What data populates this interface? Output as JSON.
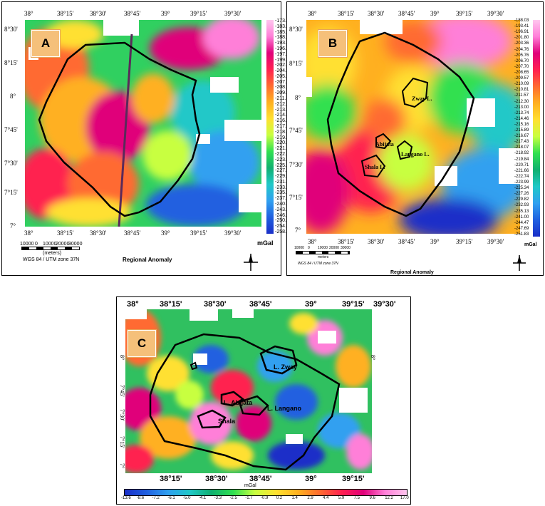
{
  "panels": {
    "a": {
      "label": "A",
      "x_ticks": [
        "38°",
        "38°15'",
        "38°30'",
        "38°45'",
        "39°",
        "39°15'",
        "39°30'"
      ],
      "y_ticks": [
        "8°30'",
        "8°15'",
        "8°",
        "7°45'",
        "7°30'",
        "7°15'",
        "7°"
      ],
      "colorbar": [
        "-173.97",
        "-183.70",
        "-185.90",
        "-188.65",
        "-193.19",
        "-196.53",
        "-197.75",
        "-199.53",
        "-202.06",
        "-204.18",
        "-205.67",
        "-207.06",
        "-208.47",
        "-209.95",
        "-211.31",
        "-212.56",
        "-213.76",
        "-214.85",
        "-216.00",
        "-217.26",
        "-218.49",
        "-219.49",
        "-220.43",
        "-221.56",
        "-222.89",
        "-223.84",
        "-225.41",
        "-227.39",
        "-229.53",
        "-231.69",
        "-233.62",
        "-235.48",
        "-237.50",
        "-240.07",
        "-243.07",
        "-246.23",
        "-250.33",
        "-254.40",
        "-258.39"
      ],
      "unit": "mGal",
      "title": "Regional Anomaly",
      "scale_ticks": [
        "10000",
        "0",
        "10000",
        "20000",
        "30000"
      ],
      "scale_unit": "(meters)",
      "projection": "WGS 84 / UTM zone 37N"
    },
    "b": {
      "label": "B",
      "x_ticks": [
        "38°",
        "38°15'",
        "38°30'",
        "38°45'",
        "39°",
        "39°15'",
        "39°30'"
      ],
      "y_ticks": [
        "8°30'",
        "8°15'",
        "8°",
        "7°45'",
        "7°30'",
        "7°15'",
        "7°"
      ],
      "colorbar": [
        "-188.03",
        "-193.41",
        "-196.91",
        "-201.80",
        "-203.36",
        "-204.76",
        "-205.76",
        "-206.70",
        "-207.70",
        "-208.65",
        "-209.57",
        "-210.09",
        "-210.81",
        "-211.57",
        "-212.30",
        "-213.00",
        "-213.74",
        "-214.46",
        "-215.16",
        "-215.89",
        "-216.67",
        "-217.43",
        "-218.07",
        "-218.92",
        "-219.84",
        "-220.71",
        "-221.66",
        "-222.74",
        "-223.99",
        "-225.34",
        "-227.26",
        "-229.82",
        "-232.93",
        "-235.13",
        "-241.00",
        "-244.47",
        "-247.69",
        "-251.83"
      ],
      "unit": "mGal",
      "title": "Regional Anomaly",
      "scale_ticks": [
        "10000",
        "0",
        "10000",
        "20000",
        "30000"
      ],
      "scale_unit": "meters",
      "projection": "WGS 84 / UTM zone 37N",
      "places": [
        "Zway L.",
        "Abijata",
        "Langano L.",
        "Shala L."
      ]
    },
    "c": {
      "label": "C",
      "x_ticks_top": [
        "38°",
        "38°15'",
        "38°30'",
        "38°45'",
        "39°",
        "39°15'",
        "39°30'"
      ],
      "x_ticks_bottom": [
        "38°15'",
        "38°30'",
        "38°45'",
        "39°",
        "39°15'"
      ],
      "y_ticks": [
        "8°",
        "8°",
        "7°45'",
        "7°30'",
        "7°15'",
        "7°"
      ],
      "unit": "mGal",
      "colorbar": [
        "-13.6",
        "-8.6",
        "-7.2",
        "-6.1",
        "-5.0",
        "-4.1",
        "-3.3",
        "-2.5",
        "-1.7",
        "-0.9",
        "0.2",
        "1.4",
        "2.9",
        "4.4",
        "5.9",
        "7.5",
        "9.6",
        "12.2",
        "17.0"
      ],
      "places": [
        "L. Zway",
        "L. Abijata",
        "L. Langano",
        "Shala"
      ]
    }
  },
  "colors": {
    "ramp": [
      "#ffc6ee",
      "#ff7fd8",
      "#e0007a",
      "#ff2050",
      "#ff6a30",
      "#ffb020",
      "#ffe030",
      "#c8ff40",
      "#30e050",
      "#10b070",
      "#20c8c8",
      "#30a0f0",
      "#2060e0",
      "#1a2fc8"
    ]
  }
}
